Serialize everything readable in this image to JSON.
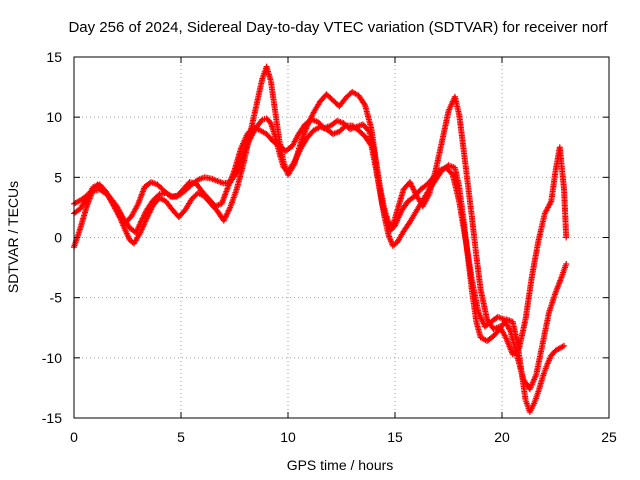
{
  "chart_data": {
    "type": "scatter",
    "title": "Day 256 of 2024, Sidereal Day-to-day VTEC variation (SDTVAR) for receiver norf",
    "xlabel": "GPS time / hours",
    "ylabel": "SDTVAR / TECUs",
    "xlim": [
      0,
      25
    ],
    "ylim": [
      -15,
      15
    ],
    "x_ticks": [
      0,
      5,
      10,
      15,
      20,
      25
    ],
    "y_ticks": [
      -15,
      -10,
      -5,
      0,
      5,
      10,
      15
    ],
    "x_tick_labels": [
      "0",
      "5",
      "10",
      "15",
      "20",
      "25"
    ],
    "y_tick_labels": [
      "-15",
      "-10",
      "-5",
      "0",
      "5",
      "10",
      "15"
    ],
    "grid": true,
    "marker": "plus",
    "color": "#ff0000",
    "series": [
      {
        "points": [
          [
            0.0,
            -0.8
          ],
          [
            0.3,
            0.8
          ],
          [
            0.6,
            2.6
          ],
          [
            0.9,
            4.0
          ],
          [
            1.1,
            4.4
          ],
          [
            1.4,
            3.9
          ],
          [
            1.7,
            3.3
          ],
          [
            2.0,
            2.6
          ],
          [
            2.3,
            1.6
          ],
          [
            2.6,
            0.8
          ],
          [
            2.9,
            0.4
          ],
          [
            3.1,
            1.2
          ],
          [
            3.4,
            2.3
          ],
          [
            3.7,
            3.1
          ],
          [
            4.0,
            3.6
          ],
          [
            4.3,
            3.7
          ],
          [
            4.6,
            3.4
          ],
          [
            4.9,
            3.5
          ],
          [
            5.2,
            3.9
          ],
          [
            5.5,
            4.4
          ],
          [
            5.8,
            4.8
          ],
          [
            6.1,
            5.0
          ],
          [
            6.4,
            4.9
          ],
          [
            6.7,
            4.7
          ],
          [
            7.0,
            4.5
          ],
          [
            7.3,
            4.6
          ],
          [
            7.6,
            5.4
          ],
          [
            7.9,
            6.8
          ],
          [
            8.2,
            8.1
          ],
          [
            8.5,
            9.1
          ],
          [
            8.8,
            9.8
          ],
          [
            9.0,
            9.9
          ],
          [
            9.2,
            9.5
          ],
          [
            9.4,
            8.4
          ],
          [
            9.6,
            7.0
          ],
          [
            9.8,
            5.8
          ],
          [
            10.0,
            5.5
          ],
          [
            10.3,
            6.3
          ],
          [
            10.6,
            7.4
          ],
          [
            10.9,
            8.3
          ],
          [
            11.2,
            8.9
          ],
          [
            11.5,
            9.2
          ],
          [
            11.8,
            9.0
          ],
          [
            12.1,
            8.6
          ],
          [
            12.4,
            8.8
          ],
          [
            12.7,
            9.3
          ],
          [
            13.0,
            9.3
          ],
          [
            13.3,
            8.9
          ],
          [
            13.6,
            8.4
          ],
          [
            13.9,
            7.6
          ],
          [
            14.1,
            5.8
          ],
          [
            14.3,
            3.8
          ],
          [
            14.5,
            1.8
          ],
          [
            14.7,
            0.2
          ],
          [
            14.9,
            -0.7
          ],
          [
            15.1,
            -0.4
          ],
          [
            15.4,
            0.5
          ],
          [
            15.7,
            1.3
          ],
          [
            16.0,
            2.2
          ],
          [
            16.3,
            3.1
          ],
          [
            16.6,
            4.0
          ],
          [
            16.9,
            4.8
          ],
          [
            17.2,
            5.6
          ],
          [
            17.5,
            6.0
          ],
          [
            17.8,
            5.8
          ],
          [
            18.0,
            4.2
          ],
          [
            18.2,
            1.5
          ],
          [
            18.4,
            -1.5
          ],
          [
            18.6,
            -4.5
          ],
          [
            18.8,
            -7.0
          ],
          [
            19.0,
            -8.3
          ],
          [
            19.3,
            -8.6
          ],
          [
            19.6,
            -8.2
          ],
          [
            19.9,
            -7.6
          ],
          [
            20.2,
            -6.8
          ],
          [
            20.5,
            -7.0
          ],
          [
            20.7,
            -8.6
          ],
          [
            20.9,
            -11.0
          ],
          [
            21.1,
            -13.5
          ],
          [
            21.3,
            -14.5
          ],
          [
            21.5,
            -13.8
          ],
          [
            21.7,
            -12.8
          ],
          [
            21.9,
            -11.6
          ],
          [
            22.1,
            -10.6
          ],
          [
            22.3,
            -9.8
          ],
          [
            22.5,
            -9.4
          ],
          [
            22.7,
            -9.2
          ],
          [
            22.9,
            -9.0
          ]
        ]
      },
      {
        "points": [
          [
            0.0,
            2.8
          ],
          [
            0.4,
            3.2
          ],
          [
            0.8,
            3.8
          ],
          [
            1.2,
            4.0
          ],
          [
            1.6,
            3.5
          ],
          [
            2.0,
            2.3
          ],
          [
            2.3,
            1.0
          ],
          [
            2.6,
            -0.2
          ],
          [
            2.8,
            -0.5
          ],
          [
            3.1,
            0.4
          ],
          [
            3.4,
            1.6
          ],
          [
            3.7,
            2.7
          ],
          [
            4.0,
            3.3
          ],
          [
            4.3,
            3.0
          ],
          [
            4.6,
            2.3
          ],
          [
            4.9,
            1.7
          ],
          [
            5.2,
            2.3
          ],
          [
            5.5,
            3.2
          ],
          [
            5.8,
            3.7
          ],
          [
            6.1,
            3.4
          ],
          [
            6.4,
            2.8
          ],
          [
            6.7,
            2.2
          ],
          [
            7.0,
            1.4
          ],
          [
            7.3,
            2.5
          ],
          [
            7.6,
            4.0
          ],
          [
            7.9,
            6.0
          ],
          [
            8.2,
            8.4
          ],
          [
            8.5,
            10.8
          ],
          [
            8.8,
            13.2
          ],
          [
            9.0,
            14.2
          ],
          [
            9.2,
            13.0
          ],
          [
            9.4,
            10.5
          ],
          [
            9.6,
            8.0
          ],
          [
            9.8,
            6.2
          ],
          [
            10.0,
            5.2
          ],
          [
            10.3,
            6.1
          ],
          [
            10.6,
            7.9
          ],
          [
            10.9,
            9.3
          ],
          [
            11.2,
            10.4
          ],
          [
            11.5,
            11.3
          ],
          [
            11.8,
            11.9
          ],
          [
            12.1,
            11.4
          ],
          [
            12.4,
            10.9
          ],
          [
            12.7,
            11.6
          ],
          [
            13.0,
            12.1
          ],
          [
            13.3,
            11.8
          ],
          [
            13.6,
            11.0
          ],
          [
            13.9,
            9.0
          ],
          [
            14.1,
            6.5
          ],
          [
            14.3,
            4.2
          ],
          [
            14.5,
            2.4
          ],
          [
            14.7,
            1.2
          ],
          [
            14.9,
            1.0
          ],
          [
            15.1,
            2.2
          ],
          [
            15.4,
            4.0
          ],
          [
            15.7,
            4.6
          ],
          [
            16.0,
            3.5
          ],
          [
            16.3,
            2.6
          ],
          [
            16.6,
            3.6
          ],
          [
            16.9,
            5.6
          ],
          [
            17.2,
            8.0
          ],
          [
            17.5,
            10.5
          ],
          [
            17.8,
            11.7
          ],
          [
            18.0,
            10.2
          ],
          [
            18.2,
            7.4
          ],
          [
            18.4,
            4.5
          ],
          [
            18.6,
            1.6
          ],
          [
            18.8,
            -1.5
          ],
          [
            19.0,
            -4.3
          ],
          [
            19.3,
            -6.8
          ],
          [
            19.6,
            -7.6
          ],
          [
            19.9,
            -7.4
          ],
          [
            20.2,
            -8.4
          ],
          [
            20.5,
            -9.7
          ],
          [
            20.8,
            -9.2
          ],
          [
            21.1,
            -6.8
          ],
          [
            21.4,
            -3.2
          ],
          [
            21.7,
            -0.3
          ],
          [
            22.0,
            2.0
          ],
          [
            22.3,
            3.0
          ],
          [
            22.5,
            5.5
          ],
          [
            22.7,
            7.5
          ],
          [
            22.9,
            4.0
          ],
          [
            23.0,
            0.0
          ]
        ]
      },
      {
        "points": [
          [
            0.0,
            2.0
          ],
          [
            0.3,
            2.4
          ],
          [
            0.6,
            3.3
          ],
          [
            0.9,
            4.2
          ],
          [
            1.2,
            4.4
          ],
          [
            1.5,
            3.8
          ],
          [
            1.8,
            2.8
          ],
          [
            2.1,
            1.8
          ],
          [
            2.4,
            1.2
          ],
          [
            2.7,
            1.8
          ],
          [
            3.0,
            2.8
          ],
          [
            3.3,
            4.2
          ],
          [
            3.6,
            4.6
          ],
          [
            3.9,
            4.4
          ],
          [
            4.2,
            3.9
          ],
          [
            4.5,
            3.4
          ],
          [
            4.8,
            3.4
          ],
          [
            5.1,
            4.0
          ],
          [
            5.4,
            4.6
          ],
          [
            5.7,
            4.5
          ],
          [
            6.0,
            3.8
          ],
          [
            6.3,
            3.2
          ],
          [
            6.6,
            2.6
          ],
          [
            6.9,
            2.8
          ],
          [
            7.2,
            4.2
          ],
          [
            7.5,
            5.6
          ],
          [
            7.8,
            7.4
          ],
          [
            8.1,
            8.6
          ],
          [
            8.4,
            9.2
          ],
          [
            8.7,
            8.9
          ],
          [
            9.0,
            8.6
          ],
          [
            9.3,
            8.0
          ],
          [
            9.6,
            7.6
          ],
          [
            9.9,
            7.2
          ],
          [
            10.2,
            7.6
          ],
          [
            10.5,
            8.6
          ],
          [
            10.8,
            9.4
          ],
          [
            11.1,
            9.8
          ],
          [
            11.4,
            9.6
          ],
          [
            11.7,
            9.1
          ],
          [
            12.0,
            9.3
          ],
          [
            12.3,
            9.7
          ],
          [
            12.6,
            9.5
          ],
          [
            12.9,
            9.0
          ],
          [
            13.2,
            9.2
          ],
          [
            13.5,
            9.4
          ],
          [
            13.8,
            8.8
          ],
          [
            14.0,
            7.4
          ],
          [
            14.2,
            5.0
          ],
          [
            14.4,
            2.8
          ],
          [
            14.6,
            1.4
          ],
          [
            14.8,
            0.6
          ],
          [
            15.0,
            1.0
          ],
          [
            15.3,
            2.2
          ],
          [
            15.6,
            3.0
          ],
          [
            15.9,
            3.4
          ],
          [
            16.2,
            4.0
          ],
          [
            16.5,
            4.4
          ],
          [
            16.8,
            5.0
          ],
          [
            17.1,
            5.6
          ],
          [
            17.4,
            5.8
          ],
          [
            17.7,
            5.2
          ],
          [
            18.0,
            3.0
          ],
          [
            18.3,
            -0.2
          ],
          [
            18.6,
            -3.6
          ],
          [
            18.9,
            -6.2
          ],
          [
            19.2,
            -7.4
          ],
          [
            19.5,
            -7.0
          ],
          [
            19.8,
            -6.6
          ],
          [
            20.1,
            -6.8
          ],
          [
            20.4,
            -7.8
          ],
          [
            20.7,
            -9.8
          ],
          [
            21.0,
            -11.8
          ],
          [
            21.3,
            -12.6
          ],
          [
            21.6,
            -11.4
          ],
          [
            21.9,
            -8.8
          ],
          [
            22.2,
            -6.2
          ],
          [
            22.5,
            -4.6
          ],
          [
            22.8,
            -3.2
          ],
          [
            23.0,
            -2.2
          ]
        ]
      }
    ]
  }
}
